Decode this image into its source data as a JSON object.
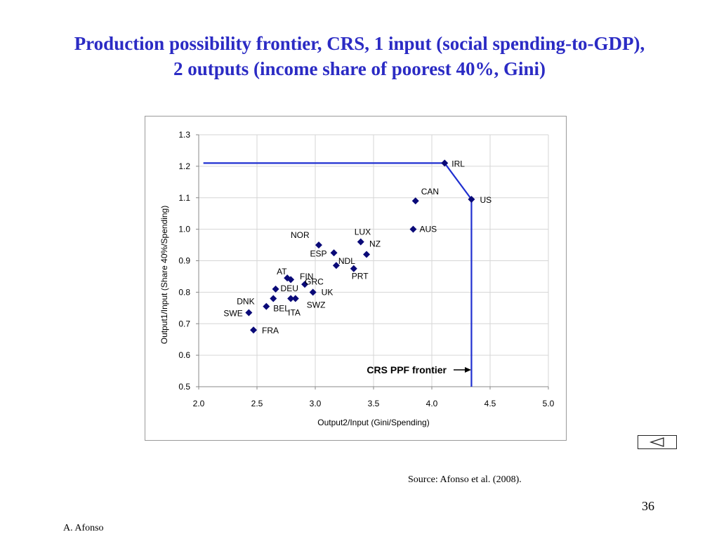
{
  "slide": {
    "title_line1": "Production possibility frontier, CRS, 1 input (social spending-to-GDP),",
    "title_line2": "2 outputs (income share of poorest 40%, Gini)",
    "source": "Source: Afonso et al. (2008).",
    "page_number": "36",
    "author": "A. Afonso",
    "back_icon": "triangle-left-icon"
  },
  "chart_data": {
    "type": "scatter",
    "xlabel": "Output2/Input (Gini/Spending)",
    "ylabel": "Output1/Input (Share 40%/Spending)",
    "xlim": [
      2.0,
      5.0
    ],
    "ylim": [
      0.5,
      1.3
    ],
    "x_ticks": [
      "2.0",
      "2.5",
      "3.0",
      "3.5",
      "4.0",
      "4.5",
      "5.0"
    ],
    "y_ticks": [
      "0.5",
      "0.6",
      "0.7",
      "0.8",
      "0.9",
      "1.0",
      "1.1",
      "1.2",
      "1.3"
    ],
    "grid": "horizontal and vertical",
    "marker_color": "#0a0a78",
    "frontier_color": "#1f2fd0",
    "points": [
      {
        "label": "IRL",
        "x": 4.11,
        "y": 1.21
      },
      {
        "label": "CAN",
        "x": 3.86,
        "y": 1.09
      },
      {
        "label": "US",
        "x": 4.34,
        "y": 1.095
      },
      {
        "label": "AUS",
        "x": 3.84,
        "y": 1.0
      },
      {
        "label": "LUX",
        "x": 3.39,
        "y": 0.96
      },
      {
        "label": "NZ",
        "x": 3.44,
        "y": 0.92
      },
      {
        "label": "NOR",
        "x": 3.03,
        "y": 0.95
      },
      {
        "label": "ESP",
        "x": 3.16,
        "y": 0.925
      },
      {
        "label": "NDL",
        "x": 3.18,
        "y": 0.885
      },
      {
        "label": "PRT",
        "x": 3.33,
        "y": 0.875
      },
      {
        "label": "AT",
        "x": 2.76,
        "y": 0.845
      },
      {
        "label": "FIN",
        "x": 2.91,
        "y": 0.825
      },
      {
        "label": "GRC",
        "x": 2.79,
        "y": 0.84
      },
      {
        "label": "DEU",
        "x": 2.66,
        "y": 0.81
      },
      {
        "label": "UK",
        "x": 2.98,
        "y": 0.8
      },
      {
        "label": "DNK",
        "x": 2.64,
        "y": 0.78
      },
      {
        "label": "ITA",
        "x": 2.79,
        "y": 0.78
      },
      {
        "label": "SWZ",
        "x": 2.83,
        "y": 0.78
      },
      {
        "label": "BEL",
        "x": 2.58,
        "y": 0.755
      },
      {
        "label": "SWE",
        "x": 2.43,
        "y": 0.735
      },
      {
        "label": "FRA",
        "x": 2.47,
        "y": 0.68
      }
    ],
    "frontier": [
      {
        "x": 2.04,
        "y": 1.21
      },
      {
        "x": 4.11,
        "y": 1.21
      },
      {
        "x": 4.34,
        "y": 1.095
      },
      {
        "x": 4.34,
        "y": 0.5
      }
    ],
    "annotation": "CRS PPF frontier"
  }
}
